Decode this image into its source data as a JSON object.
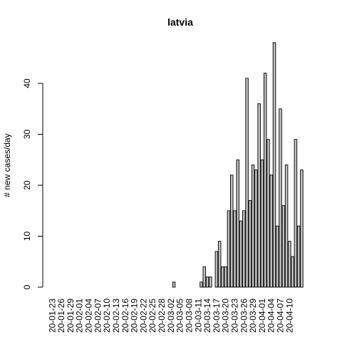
{
  "chart_data": {
    "type": "bar",
    "title": "latvia",
    "xlabel": "",
    "ylabel": "# new cases/day",
    "ylim": [
      0,
      48
    ],
    "y_ticks": [
      0,
      10,
      20,
      30,
      40
    ],
    "grid": false,
    "bar_fill": "#bebebe",
    "bar_stroke": "#000000",
    "start_date": "2020-01-23",
    "x_tick_labels": [
      "20-01-23",
      "20-01-26",
      "20-01-29",
      "20-02-01",
      "20-02-04",
      "20-02-07",
      "20-02-10",
      "20-02-13",
      "20-02-16",
      "20-02-19",
      "20-02-22",
      "20-02-25",
      "20-02-28",
      "20-03-02",
      "20-03-05",
      "20-03-08",
      "20-03-11",
      "20-03-14",
      "20-03-17",
      "20-03-20",
      "20-03-23",
      "20-03-26",
      "20-03-29",
      "20-04-01",
      "20-04-04",
      "20-04-07",
      "20-04-10"
    ],
    "values": [
      0,
      0,
      0,
      0,
      0,
      0,
      0,
      0,
      0,
      0,
      0,
      0,
      0,
      0,
      0,
      0,
      0,
      0,
      0,
      0,
      0,
      0,
      0,
      0,
      0,
      0,
      0,
      0,
      0,
      0,
      0,
      0,
      0,
      0,
      0,
      0,
      0,
      0,
      0,
      0,
      1,
      0,
      0,
      0,
      0,
      0,
      0,
      0,
      0,
      1,
      4,
      2,
      2,
      0,
      7,
      9,
      4,
      4,
      15,
      22,
      15,
      25,
      13,
      15,
      41,
      17,
      24,
      23,
      36,
      25,
      42,
      29,
      22,
      48,
      12,
      35,
      16,
      24,
      9,
      6,
      29,
      12,
      23
    ]
  }
}
